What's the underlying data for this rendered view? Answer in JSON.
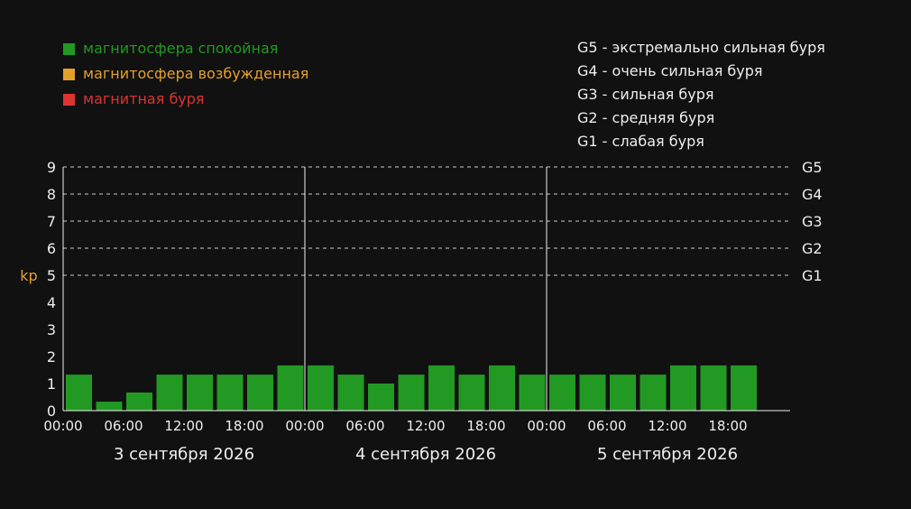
{
  "chart_data": {
    "type": "bar",
    "ylabel": "kp",
    "ylim": [
      0,
      9
    ],
    "yticks": [
      "0",
      "1",
      "2",
      "3",
      "4",
      "5",
      "6",
      "7",
      "8",
      "9"
    ],
    "grid_lines": [
      5,
      6,
      7,
      8,
      9
    ],
    "grid_style": "dashed",
    "storm_levels": [
      {
        "value": 9,
        "label": "G5"
      },
      {
        "value": 8,
        "label": "G4"
      },
      {
        "value": 7,
        "label": "G3"
      },
      {
        "value": 6,
        "label": "G2"
      },
      {
        "value": 5,
        "label": "G1"
      }
    ],
    "days": [
      {
        "label": "3 сентября 2026",
        "ticks": [
          "00:00",
          "06:00",
          "12:00",
          "18:00"
        ]
      },
      {
        "label": "4 сентября 2026",
        "ticks": [
          "00:00",
          "06:00",
          "12:00",
          "18:00"
        ]
      },
      {
        "label": "5 сентября 2026",
        "ticks": [
          "00:00",
          "06:00",
          "12:00",
          "18:00"
        ]
      }
    ],
    "values": [
      1.33,
      0.33,
      0.67,
      1.33,
      1.33,
      1.33,
      1.33,
      1.67,
      1.67,
      1.33,
      1.0,
      1.33,
      1.67,
      1.33,
      1.67,
      1.33,
      1.33,
      1.33,
      1.33,
      1.33,
      1.67,
      1.67,
      1.67
    ],
    "legend_left": [
      {
        "label": "магнитосфера спокойная",
        "color": "#229922"
      },
      {
        "label": "магнитосфера возбужденная",
        "color": "#e3a12b"
      },
      {
        "label": "магнитная буря",
        "color": "#dd3333"
      }
    ],
    "legend_right": [
      "G5 - экстремально сильная буря",
      "G4 - очень сильная буря",
      "G3 - сильная буря",
      "G2 - средняя буря",
      "G1 - слабая буря"
    ],
    "legend_placement": "top",
    "colors": {
      "background": "#111111",
      "bar": "#229922",
      "text": "#eeeeee",
      "ylabel": "#e3a12b",
      "grid": "#cccccc"
    }
  }
}
